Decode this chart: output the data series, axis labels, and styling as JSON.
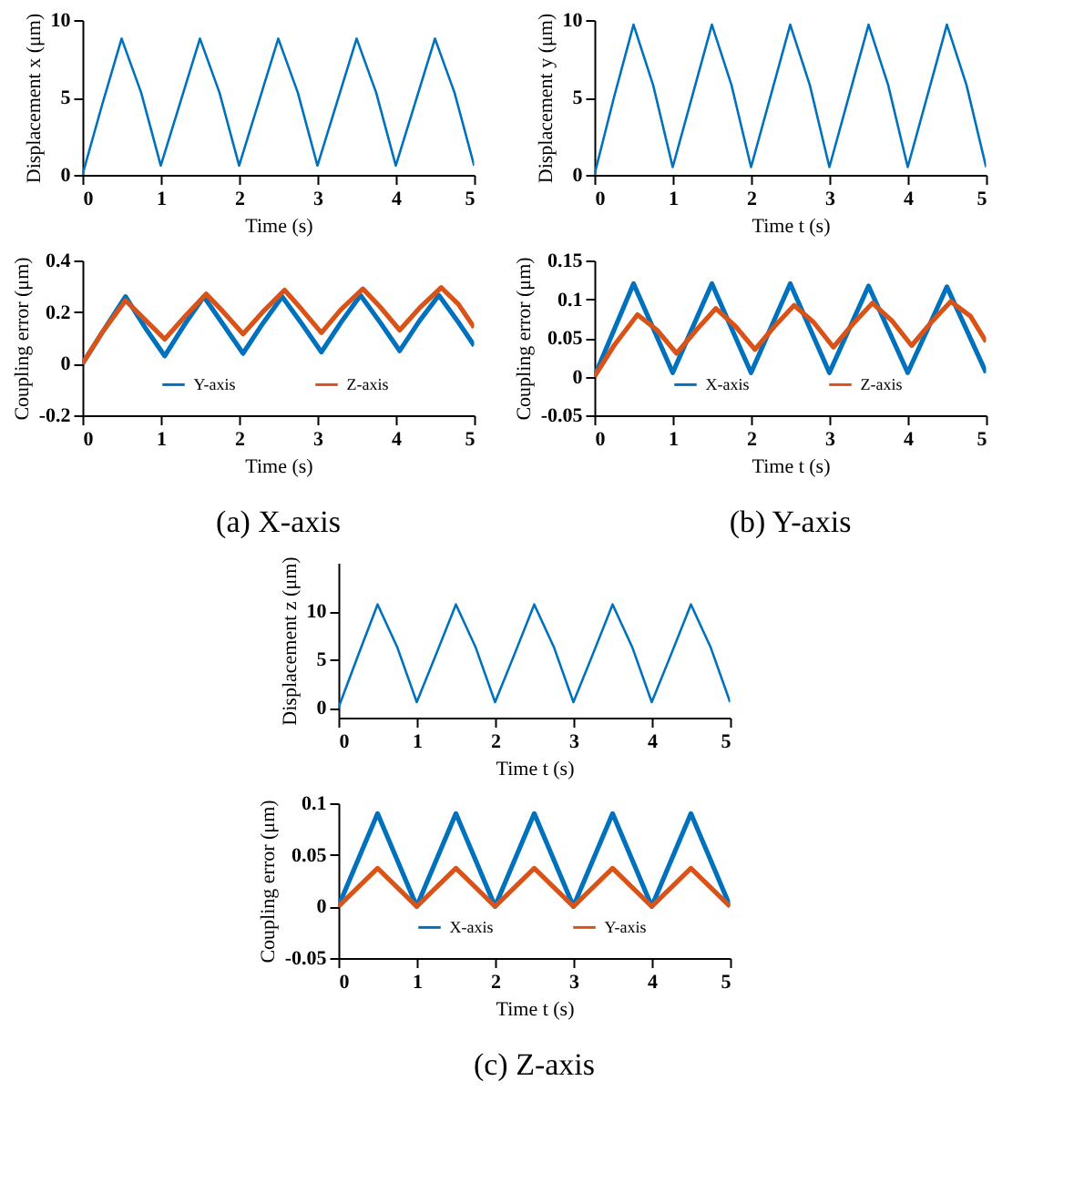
{
  "chart_data": [
    {
      "type": "line",
      "xlabel": "Time (s)",
      "ylabel": "Displacement x (μm)",
      "xlim": [
        0,
        5
      ],
      "xticks": [
        0,
        1,
        2,
        3,
        4,
        5
      ],
      "ylim": [
        0,
        10
      ],
      "yticks": [
        0,
        5,
        10
      ],
      "grid": false,
      "x": [
        0,
        0.25,
        0.5,
        0.75,
        1,
        1.25,
        1.5,
        1.75,
        2,
        2.25,
        2.5,
        2.75,
        3,
        3.25,
        3.5,
        3.75,
        4,
        4.25,
        4.5,
        4.75,
        5
      ],
      "series": [
        {
          "color": "#0072bd",
          "values": [
            0,
            4.5,
            8.8,
            5.3,
            0.6,
            4.7,
            8.8,
            5.3,
            0.6,
            4.7,
            8.8,
            5.3,
            0.6,
            4.7,
            8.8,
            5.3,
            0.6,
            4.7,
            8.8,
            5.3,
            0.6
          ]
        }
      ]
    },
    {
      "type": "line",
      "xlabel": "Time t (s)",
      "ylabel": "Displacement y (μm)",
      "xlim": [
        0,
        5
      ],
      "xticks": [
        0,
        1,
        2,
        3,
        4,
        5
      ],
      "ylim": [
        0,
        10
      ],
      "yticks": [
        0,
        5,
        10
      ],
      "grid": false,
      "x": [
        0,
        0.25,
        0.5,
        0.75,
        1,
        1.25,
        1.5,
        1.75,
        2,
        2.25,
        2.5,
        2.75,
        3,
        3.25,
        3.5,
        3.75,
        4,
        4.25,
        4.5,
        4.75,
        5
      ],
      "series": [
        {
          "color": "#0072bd",
          "values": [
            0,
            5,
            9.7,
            5.8,
            0.5,
            5.1,
            9.7,
            5.8,
            0.5,
            5.1,
            9.7,
            5.8,
            0.5,
            5.1,
            9.7,
            5.8,
            0.5,
            5.1,
            9.7,
            5.8,
            0.5
          ]
        }
      ]
    },
    {
      "type": "line",
      "xlabel": "Time (s)",
      "ylabel": "Coupling error (μm)",
      "xlim": [
        0,
        5
      ],
      "xticks": [
        0,
        1,
        2,
        3,
        4,
        5
      ],
      "ylim": [
        -0.2,
        0.4
      ],
      "yticks": [
        -0.2,
        0,
        0.2,
        0.4
      ],
      "grid": false,
      "legend": "bottom",
      "annotations": [
        "(a) X-axis"
      ],
      "series": [
        {
          "name": "Y-axis",
          "color": "#0072bd",
          "x": [
            0,
            0.25,
            0.55,
            0.8,
            1.05,
            1.3,
            1.55,
            1.8,
            2.05,
            2.3,
            2.55,
            2.8,
            3.05,
            3.3,
            3.55,
            3.8,
            4.05,
            4.3,
            4.55,
            4.8,
            5
          ],
          "values": [
            0,
            0.12,
            0.26,
            0.14,
            0.03,
            0.15,
            0.26,
            0.15,
            0.04,
            0.155,
            0.26,
            0.155,
            0.045,
            0.16,
            0.265,
            0.16,
            0.05,
            0.165,
            0.265,
            0.16,
            0.07
          ]
        },
        {
          "name": "Z-axis",
          "color": "#d95319",
          "x": [
            0,
            0.25,
            0.55,
            0.8,
            1.05,
            1.3,
            1.58,
            1.8,
            2.05,
            2.3,
            2.58,
            2.8,
            3.05,
            3.3,
            3.58,
            3.8,
            4.05,
            4.3,
            4.58,
            4.8,
            5
          ],
          "values": [
            0,
            0.12,
            0.245,
            0.17,
            0.095,
            0.18,
            0.27,
            0.2,
            0.115,
            0.2,
            0.285,
            0.21,
            0.12,
            0.21,
            0.29,
            0.22,
            0.13,
            0.215,
            0.295,
            0.23,
            0.14
          ]
        }
      ]
    },
    {
      "type": "line",
      "xlabel": "Time t (s)",
      "ylabel": "Coupling error (μm)",
      "xlim": [
        0,
        5
      ],
      "xticks": [
        0,
        1,
        2,
        3,
        4,
        5
      ],
      "ylim": [
        -0.05,
        0.15
      ],
      "yticks": [
        -0.05,
        0,
        0.05,
        0.1,
        0.15
      ],
      "grid": false,
      "legend": "bottom",
      "annotations": [
        "(b) Y-axis"
      ],
      "series": [
        {
          "name": "X-axis",
          "color": "#0072bd",
          "x": [
            0,
            0.5,
            1,
            1.5,
            2,
            2.5,
            3,
            3.5,
            4,
            4.5,
            5
          ],
          "values": [
            0,
            0.12,
            0.005,
            0.12,
            0.005,
            0.12,
            0.005,
            0.117,
            0.005,
            0.116,
            0.005
          ]
        },
        {
          "name": "Z-axis",
          "color": "#d95319",
          "x": [
            0,
            0.25,
            0.55,
            0.8,
            1.05,
            1.3,
            1.55,
            1.8,
            2.05,
            2.3,
            2.55,
            2.8,
            3.05,
            3.3,
            3.55,
            3.8,
            4.05,
            4.3,
            4.55,
            4.8,
            5
          ],
          "values": [
            0,
            0.04,
            0.08,
            0.06,
            0.03,
            0.06,
            0.088,
            0.065,
            0.035,
            0.065,
            0.092,
            0.07,
            0.038,
            0.068,
            0.095,
            0.072,
            0.04,
            0.07,
            0.097,
            0.078,
            0.045
          ]
        }
      ]
    },
    {
      "type": "line",
      "xlabel": "Time t (s)",
      "ylabel": "Displacement z (μm)",
      "xlim": [
        0,
        5
      ],
      "xticks": [
        0,
        1,
        2,
        3,
        4,
        5
      ],
      "ylim": [
        -1,
        15
      ],
      "yticks": [
        0,
        5,
        10
      ],
      "grid": false,
      "x": [
        0,
        0.25,
        0.5,
        0.75,
        1,
        1.25,
        1.5,
        1.75,
        2,
        2.25,
        2.5,
        2.75,
        3,
        3.25,
        3.5,
        3.75,
        4,
        4.25,
        4.5,
        4.75,
        5
      ],
      "series": [
        {
          "color": "#0072bd",
          "values": [
            0,
            5.4,
            10.7,
            6.3,
            0.6,
            5.6,
            10.7,
            6.3,
            0.6,
            5.6,
            10.7,
            6.3,
            0.6,
            5.6,
            10.7,
            6.3,
            0.6,
            5.6,
            10.7,
            6.3,
            0.6
          ]
        }
      ]
    },
    {
      "type": "line",
      "xlabel": "Time t (s)",
      "ylabel": "Coupling error (μm)",
      "xlim": [
        0,
        5
      ],
      "xticks": [
        0,
        1,
        2,
        3,
        4,
        5
      ],
      "ylim": [
        -0.05,
        0.1
      ],
      "yticks": [
        -0.05,
        0,
        0.05,
        0.1
      ],
      "grid": false,
      "legend": "bottom",
      "annotations": [
        "(c) Z-axis"
      ],
      "series": [
        {
          "name": "X-axis",
          "color": "#0072bd",
          "x": [
            0,
            0.5,
            1,
            1.5,
            2,
            2.5,
            3,
            3.5,
            4,
            4.5,
            5
          ],
          "values": [
            0,
            0.09,
            0,
            0.09,
            0,
            0.09,
            0,
            0.09,
            0,
            0.09,
            0
          ]
        },
        {
          "name": "Y-axis",
          "color": "#d95319",
          "x": [
            0,
            0.5,
            1,
            1.5,
            2,
            2.5,
            3,
            3.5,
            4,
            4.5,
            5
          ],
          "values": [
            0,
            0.037,
            0,
            0.037,
            0,
            0.037,
            0,
            0.037,
            0,
            0.037,
            0
          ]
        }
      ]
    }
  ]
}
